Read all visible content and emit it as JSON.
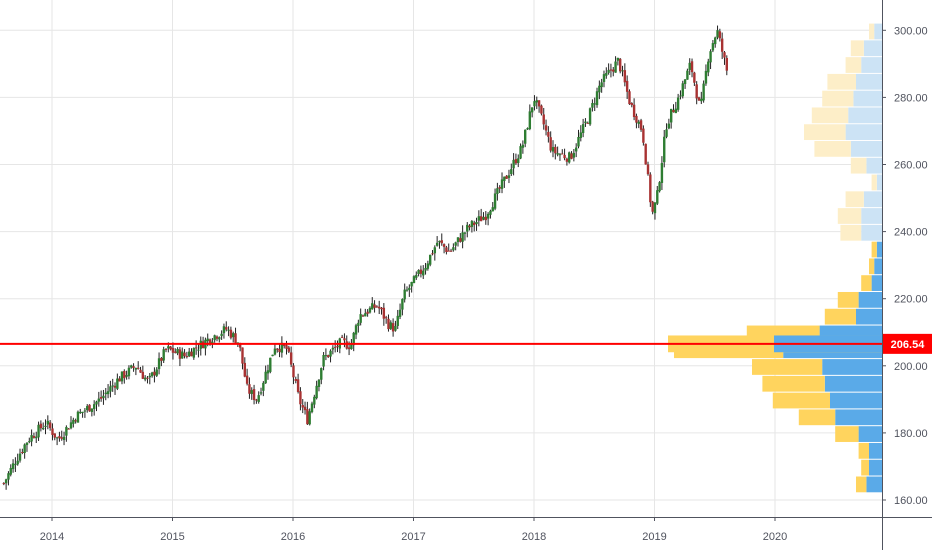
{
  "chart_data": {
    "type": "candlestick",
    "title": "",
    "xlabel": "",
    "ylabel": "",
    "x_ticks": [
      "2014",
      "2015",
      "2016",
      "2017",
      "2018",
      "2019",
      "2020"
    ],
    "y_ticks": [
      "160.00",
      "180.00",
      "200.00",
      "220.00",
      "240.00",
      "260.00",
      "280.00",
      "300.00"
    ],
    "ylim": [
      157,
      307
    ],
    "xlim_year": [
      2013.6,
      2021.0
    ],
    "grid": true,
    "current_price": 206.54,
    "current_price_label": "206.54",
    "weekly_closes_anchor": [
      [
        2013.6,
        165
      ],
      [
        2013.7,
        172
      ],
      [
        2013.8,
        178
      ],
      [
        2013.95,
        183
      ],
      [
        2014.05,
        178
      ],
      [
        2014.2,
        185
      ],
      [
        2014.4,
        190
      ],
      [
        2014.55,
        196
      ],
      [
        2014.7,
        200
      ],
      [
        2014.8,
        195
      ],
      [
        2014.95,
        205
      ],
      [
        2015.1,
        203
      ],
      [
        2015.3,
        208
      ],
      [
        2015.45,
        211
      ],
      [
        2015.55,
        207
      ],
      [
        2015.62,
        193
      ],
      [
        2015.7,
        190
      ],
      [
        2015.85,
        206
      ],
      [
        2015.95,
        205
      ],
      [
        2016.05,
        190
      ],
      [
        2016.12,
        184
      ],
      [
        2016.25,
        202
      ],
      [
        2016.4,
        207
      ],
      [
        2016.48,
        206
      ],
      [
        2016.55,
        215
      ],
      [
        2016.7,
        218
      ],
      [
        2016.8,
        212
      ],
      [
        2016.85,
        211
      ],
      [
        2016.92,
        221
      ],
      [
        2017.1,
        230
      ],
      [
        2017.2,
        237
      ],
      [
        2017.3,
        234
      ],
      [
        2017.45,
        241
      ],
      [
        2017.6,
        245
      ],
      [
        2017.75,
        255
      ],
      [
        2017.9,
        265
      ],
      [
        2018.0,
        280
      ],
      [
        2018.08,
        272
      ],
      [
        2018.15,
        264
      ],
      [
        2018.3,
        262
      ],
      [
        2018.45,
        274
      ],
      [
        2018.55,
        284
      ],
      [
        2018.7,
        291
      ],
      [
        2018.8,
        278
      ],
      [
        2018.9,
        270
      ],
      [
        2018.98,
        245
      ],
      [
        2019.02,
        250
      ],
      [
        2019.1,
        272
      ],
      [
        2019.2,
        280
      ],
      [
        2019.3,
        290
      ],
      [
        2019.38,
        276
      ],
      [
        2019.45,
        293
      ],
      [
        2019.52,
        300
      ],
      [
        2019.6,
        288
      ]
    ],
    "volume_profile": [
      {
        "price_low": 162,
        "price_high": 167,
        "up": 4,
        "down": 6
      },
      {
        "price_low": 167,
        "price_high": 172,
        "up": 3,
        "down": 5
      },
      {
        "price_low": 172,
        "price_high": 177,
        "up": 4,
        "down": 5
      },
      {
        "price_low": 177,
        "price_high": 182,
        "up": 9,
        "down": 9
      },
      {
        "price_low": 182,
        "price_high": 187,
        "up": 14,
        "down": 18
      },
      {
        "price_low": 187,
        "price_high": 192,
        "up": 22,
        "down": 20
      },
      {
        "price_low": 192,
        "price_high": 197,
        "up": 24,
        "down": 22
      },
      {
        "price_low": 197,
        "price_high": 202,
        "up": 27,
        "down": 23
      },
      {
        "price_low": 202,
        "price_high": 207,
        "up": 42,
        "down": 38
      },
      {
        "price_low": 207,
        "price_high": 212,
        "up": 28,
        "down": 24
      },
      {
        "price_low": 212,
        "price_high": 217,
        "up": 12,
        "down": 10
      },
      {
        "price_low": 217,
        "price_high": 222,
        "up": 8,
        "down": 9
      },
      {
        "price_low": 222,
        "price_high": 227,
        "up": 4,
        "down": 4
      },
      {
        "price_low": 227,
        "price_high": 232,
        "up": 2,
        "down": 3
      },
      {
        "price_low": 232,
        "price_high": 237,
        "up": 2,
        "down": 2
      },
      {
        "price_low": 237,
        "price_high": 242,
        "up": 8,
        "down": 8
      },
      {
        "price_low": 242,
        "price_high": 247,
        "up": 9,
        "down": 8
      },
      {
        "price_low": 247,
        "price_high": 252,
        "up": 7,
        "down": 7
      },
      {
        "price_low": 252,
        "price_high": 257,
        "up": 2,
        "down": 2
      },
      {
        "price_low": 257,
        "price_high": 262,
        "up": 6,
        "down": 6
      },
      {
        "price_low": 262,
        "price_high": 267,
        "up": 14,
        "down": 12
      },
      {
        "price_low": 267,
        "price_high": 272,
        "up": 16,
        "down": 14
      },
      {
        "price_low": 272,
        "price_high": 277,
        "up": 14,
        "down": 13
      },
      {
        "price_low": 277,
        "price_high": 282,
        "up": 12,
        "down": 11
      },
      {
        "price_low": 282,
        "price_high": 287,
        "up": 11,
        "down": 10
      },
      {
        "price_low": 287,
        "price_high": 292,
        "up": 6,
        "down": 8
      },
      {
        "price_low": 292,
        "price_high": 297,
        "up": 5,
        "down": 7
      },
      {
        "price_low": 297,
        "price_high": 302,
        "up": 2,
        "down": 3
      }
    ],
    "colors": {
      "up_candle": "#2e7d32",
      "down_candle": "#a83232",
      "wick": "#222222",
      "grid": "#e6e6e6",
      "axis_line": "#50535e",
      "price_line": "#ff0000",
      "price_tag_bg": "#ff0000",
      "vp_up_in": "#ffd45e",
      "vp_down_in": "#5aaae8",
      "vp_up_out": "#fdeec8",
      "vp_down_out": "#cce3f5"
    }
  }
}
